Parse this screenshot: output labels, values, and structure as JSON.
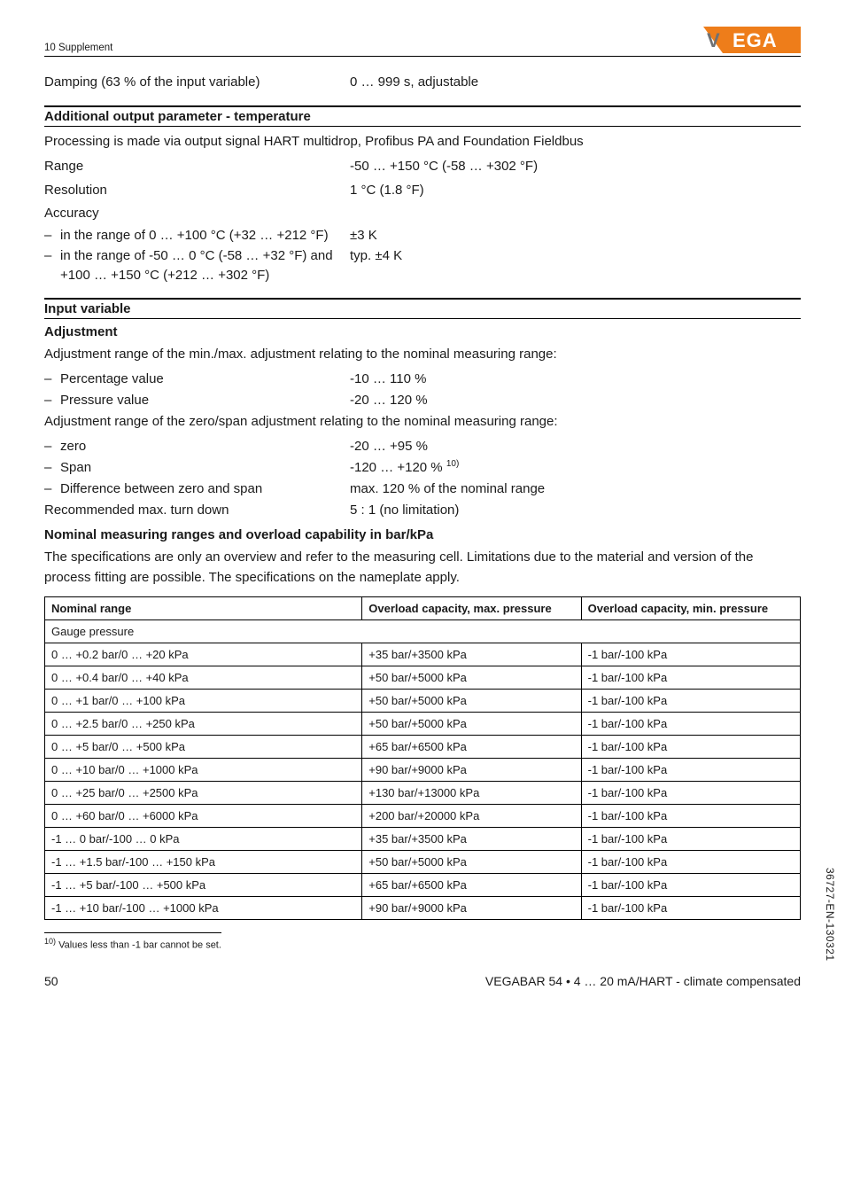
{
  "header": {
    "section": "10 Supplement"
  },
  "logo": {
    "text": "VEGA",
    "orange": "#ee7d1a",
    "grey": "#6f7173"
  },
  "damping": {
    "label": "Damping (63 % of the input variable)",
    "value": "0 … 999 s, adjustable"
  },
  "addout": {
    "title": "Additional output parameter - temperature",
    "intro": "Processing is made via output signal HART multidrop, Profibus PA and Foundation Fieldbus",
    "range": {
      "label": "Range",
      "value": "-50 … +150 °C (-58 … +302 °F)"
    },
    "resolution": {
      "label": "Resolution",
      "value": "1 °C (1.8 °F)"
    },
    "accuracy_label": "Accuracy",
    "acc1": {
      "label": "in the range of 0 … +100 °C (+32 … +212 °F)",
      "value": "±3 K"
    },
    "acc2": {
      "label": "in the range of -50 … 0 °C (-58 … +32 °F) and +100 … +150 °C (+212 … +302 °F)",
      "value": "typ. ±4 K"
    }
  },
  "inputvar": {
    "title": "Input variable",
    "adjustment": "Adjustment",
    "minmax_intro": "Adjustment range of the min./max. adjustment relating to the nominal measuring range:",
    "pct": {
      "label": "Percentage value",
      "value": "-10 … 110 %"
    },
    "pres": {
      "label": "Pressure value",
      "value": "-20 … 120 %"
    },
    "zs_intro": "Adjustment range of the zero/span adjustment relating to the nominal measuring range:",
    "zero": {
      "label": "zero",
      "value": "-20 … +95 %"
    },
    "span": {
      "label": "Span",
      "value": "-120 … +120 %",
      "note": "10)"
    },
    "diff": {
      "label": "Difference between zero and span",
      "value": "max. 120 % of the nominal range"
    },
    "turndown": {
      "label": "Recommended max. turn down",
      "value": "5 : 1 (no limitation)"
    }
  },
  "nominal": {
    "title": "Nominal measuring ranges and overload capability in bar/kPa",
    "intro": "The specifications are only an overview and refer to the measuring cell. Limitations due to the material and version of the process fitting are possible. The specifications on the nameplate apply.",
    "columns": {
      "c1": "Nominal range",
      "c2": "Overload capacity, max. pressure",
      "c3": "Overload capacity, min. pressure"
    },
    "group": "Gauge pressure",
    "rows": [
      {
        "r": "0 … +0.2 bar/0 … +20 kPa",
        "max": "+35 bar/+3500 kPa",
        "min": "-1 bar/-100 kPa"
      },
      {
        "r": "0 … +0.4 bar/0 … +40 kPa",
        "max": "+50 bar/+5000 kPa",
        "min": "-1 bar/-100 kPa"
      },
      {
        "r": "0 … +1 bar/0 … +100 kPa",
        "max": "+50 bar/+5000 kPa",
        "min": "-1 bar/-100 kPa"
      },
      {
        "r": "0 … +2.5 bar/0 … +250 kPa",
        "max": "+50 bar/+5000 kPa",
        "min": "-1 bar/-100 kPa"
      },
      {
        "r": "0 … +5 bar/0 … +500 kPa",
        "max": "+65 bar/+6500 kPa",
        "min": "-1 bar/-100 kPa"
      },
      {
        "r": "0 … +10 bar/0 … +1000 kPa",
        "max": "+90 bar/+9000 kPa",
        "min": "-1 bar/-100 kPa"
      },
      {
        "r": "0 … +25 bar/0 … +2500 kPa",
        "max": "+130 bar/+13000 kPa",
        "min": "-1 bar/-100 kPa"
      },
      {
        "r": "0 … +60 bar/0 … +6000 kPa",
        "max": "+200 bar/+20000 kPa",
        "min": "-1 bar/-100 kPa"
      },
      {
        "r": "-1 … 0 bar/-100 … 0 kPa",
        "max": "+35 bar/+3500 kPa",
        "min": "-1 bar/-100 kPa"
      },
      {
        "r": "-1 … +1.5 bar/-100 … +150 kPa",
        "max": "+50 bar/+5000 kPa",
        "min": "-1 bar/-100 kPa"
      },
      {
        "r": "-1 … +5 bar/-100 … +500 kPa",
        "max": "+65 bar/+6500 kPa",
        "min": "-1 bar/-100 kPa"
      },
      {
        "r": "-1 … +10 bar/-100 … +1000 kPa",
        "max": "+90 bar/+9000 kPa",
        "min": "-1 bar/-100 kPa"
      }
    ]
  },
  "footnote": {
    "mark": "10)",
    "text": " Values less than -1 bar cannot be set."
  },
  "footer": {
    "page": "50",
    "doc": "VEGABAR 54 • 4 … 20 mA/HART - climate compensated"
  },
  "sidecode": "36727-EN-130321"
}
